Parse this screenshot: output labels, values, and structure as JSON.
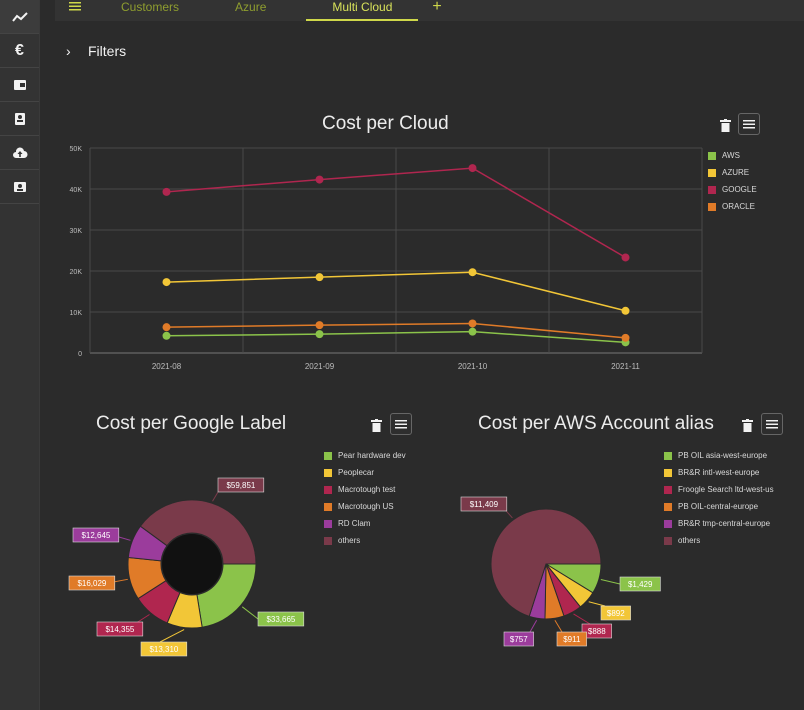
{
  "nav": {
    "tabs": [
      {
        "label": "Customers"
      },
      {
        "label": "Azure"
      },
      {
        "label": "Multi Cloud"
      }
    ],
    "menu_icon": "hamburger-icon",
    "add_icon": "plus-icon",
    "accent": "#cfd84a"
  },
  "sidebar": {
    "items": [
      {
        "icon": "trend-line-icon",
        "glyph": "⤴"
      },
      {
        "icon": "euro-icon",
        "glyph": "€"
      },
      {
        "icon": "wallet-icon",
        "glyph": "▣"
      },
      {
        "icon": "contacts-icon",
        "glyph": "▤"
      },
      {
        "icon": "cloud-upload-icon",
        "glyph": "☁"
      },
      {
        "icon": "badge-icon",
        "glyph": "▦"
      }
    ]
  },
  "filters": {
    "label": "Filters",
    "icon": "chevron-right-icon"
  },
  "charts": {
    "cloud": {
      "title": "Cost per Cloud"
    },
    "google": {
      "title": "Cost per Google Label"
    },
    "aws": {
      "title": "Cost per AWS Account alias"
    }
  },
  "chart_data": [
    {
      "type": "line",
      "title": "Cost per Cloud",
      "categories": [
        "2021-08",
        "2021-09",
        "2021-10",
        "2021-11"
      ],
      "ylim": [
        0,
        50000
      ],
      "yticks": [
        "0",
        "10K",
        "20K",
        "30K",
        "40K",
        "50K"
      ],
      "grid": true,
      "legend_position": "right",
      "series": [
        {
          "name": "AWS",
          "color": "#8bc34a",
          "values": [
            4200,
            4600,
            5200,
            2600
          ]
        },
        {
          "name": "AZURE",
          "color": "#f2c637",
          "values": [
            17300,
            18500,
            19700,
            10300
          ]
        },
        {
          "name": "GOOGLE",
          "color": "#b0264f",
          "values": [
            39300,
            42300,
            45100,
            23300
          ]
        },
        {
          "name": "ORACLE",
          "color": "#e07b28",
          "values": [
            6300,
            6800,
            7200,
            3700
          ]
        }
      ]
    },
    {
      "type": "pie",
      "title": "Cost per Google Label",
      "donut": true,
      "legend_position": "right",
      "series": [
        {
          "name": "Pear hardware dev",
          "color": "#8bc34a",
          "value": 33665,
          "label": "$33,665"
        },
        {
          "name": "Peoplecar",
          "color": "#f2c637",
          "value": 13310,
          "label": "$13,310"
        },
        {
          "name": "Macrotough test",
          "color": "#b0264f",
          "value": 14355,
          "label": "$14,355"
        },
        {
          "name": "Macrotough US",
          "color": "#e07b28",
          "value": 16029,
          "label": "$16,029"
        },
        {
          "name": "RD Clam",
          "color": "#9b3c9c",
          "value": 12645,
          "label": "$12,645"
        },
        {
          "name": "others",
          "color": "#7a3a4a",
          "value": 59851,
          "label": "$59,851"
        }
      ]
    },
    {
      "type": "pie",
      "title": "Cost per AWS Account alias",
      "donut": true,
      "legend_position": "right",
      "series": [
        {
          "name": "PB OIL asia-west-europe",
          "color": "#8bc34a",
          "value": 1429,
          "label": "$1,429"
        },
        {
          "name": "BR&R intl-west-europe",
          "color": "#f2c637",
          "value": 892,
          "label": "$892"
        },
        {
          "name": "Froogle Search ltd-west-us",
          "color": "#b0264f",
          "value": 888,
          "label": "$888"
        },
        {
          "name": "PB OIL-central-europe",
          "color": "#e07b28",
          "value": 911,
          "label": "$911"
        },
        {
          "name": "BR&R tmp-central-europe",
          "color": "#9b3c9c",
          "value": 757,
          "label": "$757"
        },
        {
          "name": "others",
          "color": "#7a3a4a",
          "value": 11409,
          "label": "$11,409"
        }
      ]
    }
  ]
}
